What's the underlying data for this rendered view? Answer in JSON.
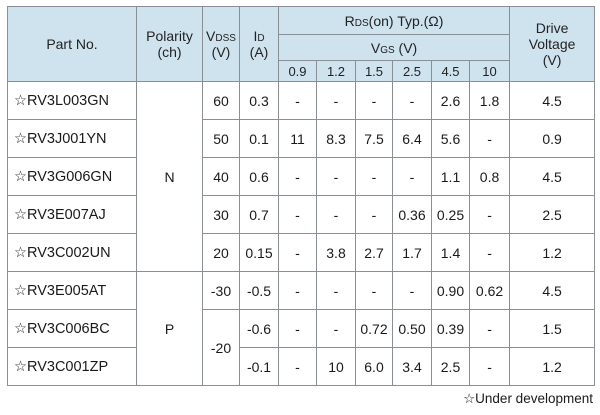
{
  "header": {
    "part_no": "Part No.",
    "polarity": "Polarity",
    "polarity_unit": "(ch)",
    "vdss_main": "V",
    "vdss_sub": "DSS",
    "vdss_unit": "(V)",
    "id_main": "I",
    "id_sub": "D",
    "id_unit": "(A)",
    "rds_main": "R",
    "rds_sub": "DS",
    "rds_rest": "(on) Typ.(Ω)",
    "vgs_main": "V",
    "vgs_sub": "GS",
    "vgs_unit": " (V)",
    "drive_line1": "Drive",
    "drive_line2": "Voltage",
    "drive_unit": "(V)",
    "vgs_values": [
      "0.9",
      "1.2",
      "1.5",
      "2.5",
      "4.5",
      "10"
    ]
  },
  "polarity_groups": [
    "N",
    "P"
  ],
  "p_vdss_shared": "-20",
  "rows": [
    {
      "part": "☆RV3L003GN",
      "vdss": "60",
      "id": "0.3",
      "r": [
        "-",
        "-",
        "-",
        "-",
        "2.6",
        "1.8"
      ],
      "drive": "4.5"
    },
    {
      "part": "☆RV3J001YN",
      "vdss": "50",
      "id": "0.1",
      "r": [
        "11",
        "8.3",
        "7.5",
        "6.4",
        "5.6",
        "-"
      ],
      "drive": "0.9"
    },
    {
      "part": "☆RV3G006GN",
      "vdss": "40",
      "id": "0.6",
      "r": [
        "-",
        "-",
        "-",
        "-",
        "1.1",
        "0.8"
      ],
      "drive": "4.5"
    },
    {
      "part": "☆RV3E007AJ",
      "vdss": "30",
      "id": "0.7",
      "r": [
        "-",
        "-",
        "-",
        "0.36",
        "0.25",
        "-"
      ],
      "drive": "2.5"
    },
    {
      "part": "☆RV3C002UN",
      "vdss": "20",
      "id": "0.15",
      "r": [
        "-",
        "3.8",
        "2.7",
        "1.7",
        "1.4",
        "-"
      ],
      "drive": "1.2"
    },
    {
      "part": "☆RV3E005AT",
      "vdss": "-30",
      "id": "-0.5",
      "r": [
        "-",
        "-",
        "-",
        "-",
        "0.90",
        "0.62"
      ],
      "drive": "4.5"
    },
    {
      "part": "☆RV3C006BC",
      "vdss": "",
      "id": "-0.6",
      "r": [
        "-",
        "-",
        "0.72",
        "0.50",
        "0.39",
        "-"
      ],
      "drive": "1.5"
    },
    {
      "part": "☆RV3C001ZP",
      "vdss": "",
      "id": "-0.1",
      "r": [
        "-",
        "10",
        "6.0",
        "3.4",
        "2.5",
        "-"
      ],
      "drive": "1.2"
    }
  ],
  "footnote": "☆Under development"
}
